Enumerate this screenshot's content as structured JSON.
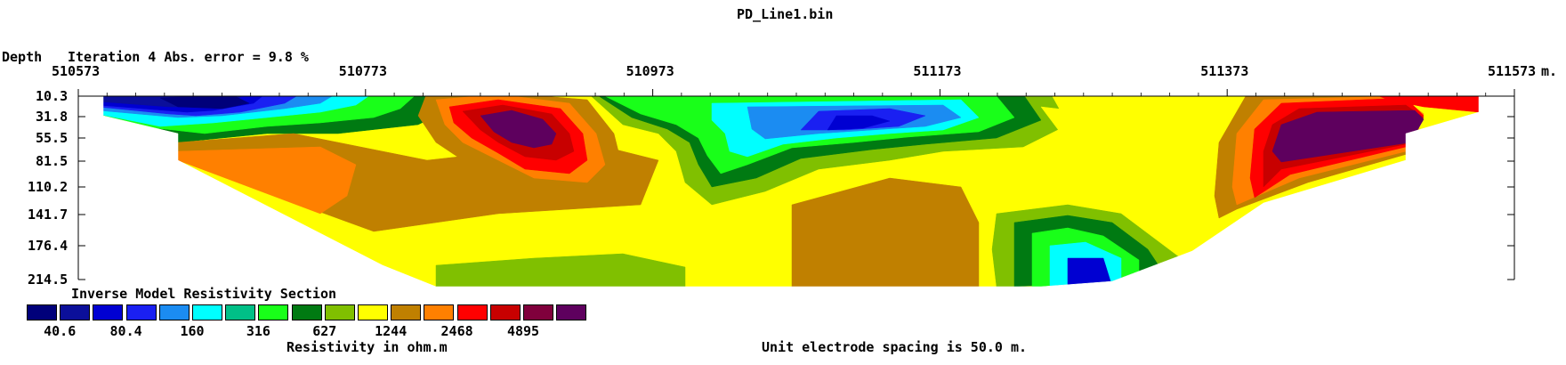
{
  "title": "PD_Line1.bin",
  "depth_label": "Depth",
  "iteration_text": "Iteration 4 Abs. error = 9.8 %",
  "unit_text": "m.",
  "colorbar": {
    "title": "Inverse Model Resistivity Section",
    "colors": [
      "#00007a",
      "#0b0f9a",
      "#0000d2",
      "#1a20f2",
      "#1b8cf2",
      "#00ffff",
      "#00c087",
      "#19ff19",
      "#007a12",
      "#80c000",
      "#ffff00",
      "#c08000",
      "#ff8000",
      "#ff0000",
      "#c80000",
      "#80003c",
      "#5e005e"
    ],
    "labels": [
      "40.6",
      "80.4",
      "160",
      "316",
      "627",
      "1244",
      "2468",
      "4895"
    ],
    "unit_label": "Resistivity in ohm.m"
  },
  "footer_text": "Unit electrode spacing is 50.0 m.",
  "chart_data": {
    "type": "heatmap",
    "title": "PD_Line1.bin",
    "x_ticks": [
      "510573",
      "510773",
      "510973",
      "511173",
      "511373",
      "511573"
    ],
    "x_range": [
      510573,
      511573
    ],
    "depth_ticks": [
      "10.3",
      "31.8",
      "55.5",
      "81.5",
      "110.2",
      "141.7",
      "176.4",
      "214.5"
    ],
    "depth_unit": "m.",
    "abs_error_percent": 9.8,
    "iteration": 4,
    "electrode_spacing_m": 50.0,
    "contour_levels_ohm_m": [
      40.6,
      80.4,
      160,
      316,
      627,
      1244,
      2468,
      4895
    ],
    "grid": false
  }
}
